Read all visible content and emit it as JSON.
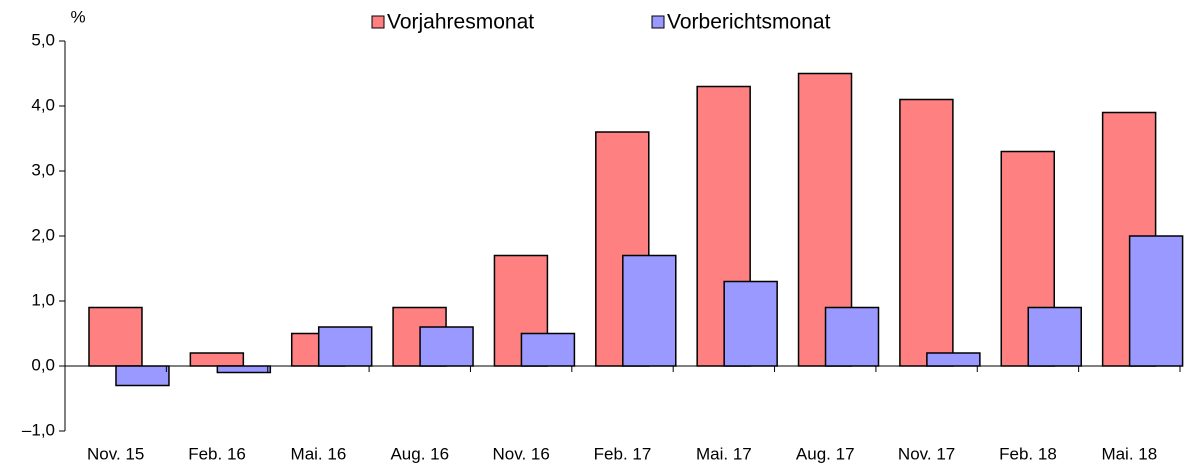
{
  "chart_data": {
    "type": "bar",
    "y_label": "%",
    "categories": [
      "Nov. 15",
      "Feb. 16",
      "Mai. 16",
      "Aug. 16",
      "Nov. 16",
      "Feb. 17",
      "Mai. 17",
      "Aug. 17",
      "Nov. 17",
      "Feb. 18",
      "Mai. 18"
    ],
    "series": [
      {
        "name": "Vorjahresmonat",
        "color": "#ff8080",
        "values": [
          0.9,
          0.2,
          0.5,
          0.9,
          1.7,
          3.6,
          4.3,
          4.5,
          4.1,
          3.3,
          3.9
        ]
      },
      {
        "name": "Vorberichtsmonat",
        "color": "#9999ff",
        "values": [
          -0.3,
          -0.1,
          0.6,
          0.6,
          0.5,
          1.7,
          1.3,
          0.9,
          0.2,
          0.9,
          2.0
        ]
      }
    ],
    "ylim": [
      -1,
      5
    ],
    "yticks": [
      {
        "value": -1,
        "label": "–1,0"
      },
      {
        "value": 0,
        "label": "0,0"
      },
      {
        "value": 1,
        "label": "1,0"
      },
      {
        "value": 2,
        "label": "2,0"
      },
      {
        "value": 3,
        "label": "3,0"
      },
      {
        "value": 4,
        "label": "4,0"
      },
      {
        "value": 5,
        "label": "5,0"
      }
    ],
    "grid": false,
    "legend": "top"
  }
}
